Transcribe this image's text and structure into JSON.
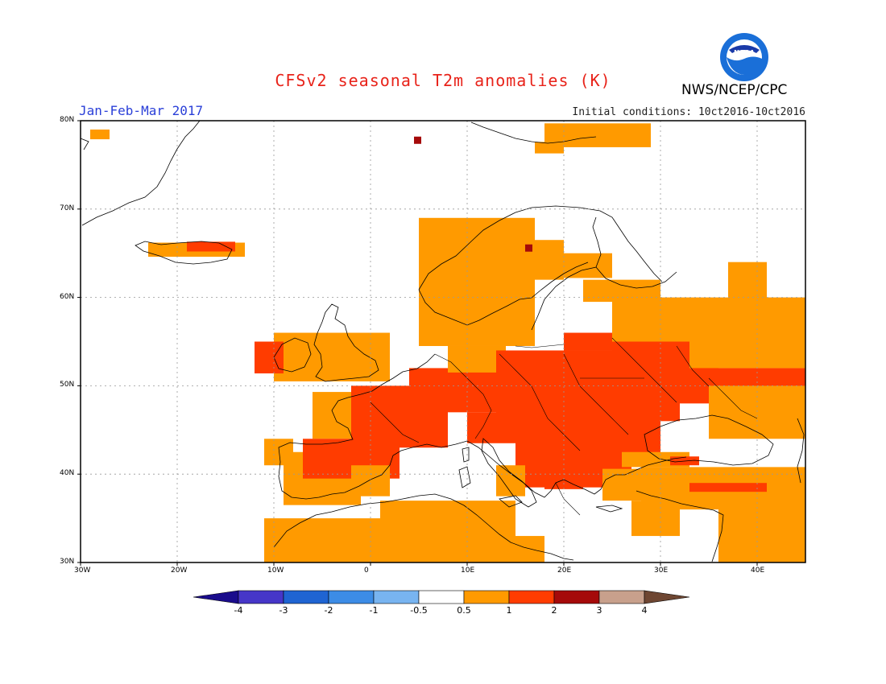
{
  "title": "CFSv2 seasonal T2m anomalies (K)",
  "period": "Jan-Feb-Mar 2017",
  "initial_conditions": "Initial conditions: 10ct2016-10ct2016",
  "agency": "NWS/NCEP/CPC",
  "logo_text": "NOAA",
  "lat_ticks": [
    "80N",
    "70N",
    "60N",
    "50N",
    "40N",
    "30N"
  ],
  "lon_ticks": [
    "30W",
    "20W",
    "10W",
    "0",
    "10E",
    "20E",
    "30E",
    "40E"
  ],
  "colorbar": {
    "labels": [
      "-4",
      "-3",
      "-2",
      "-1",
      "-0.5",
      "0.5",
      "1",
      "2",
      "3",
      "4"
    ],
    "colors": [
      "#1a0c8c",
      "#4636c8",
      "#1f64d2",
      "#3c8ce6",
      "#78b4f0",
      "#ffffff",
      "#ff9a00",
      "#ff3c00",
      "#a50a0a",
      "#c8a08c",
      "#6e4632"
    ]
  },
  "map_extent": {
    "lon_min": -30,
    "lon_max": 45,
    "lat_min": 30,
    "lat_max": 80
  },
  "anomaly_colors": {
    "0.5-1": "#ff9a00",
    "1-2": "#ff3c00",
    "2-3": "#a50a0a"
  }
}
